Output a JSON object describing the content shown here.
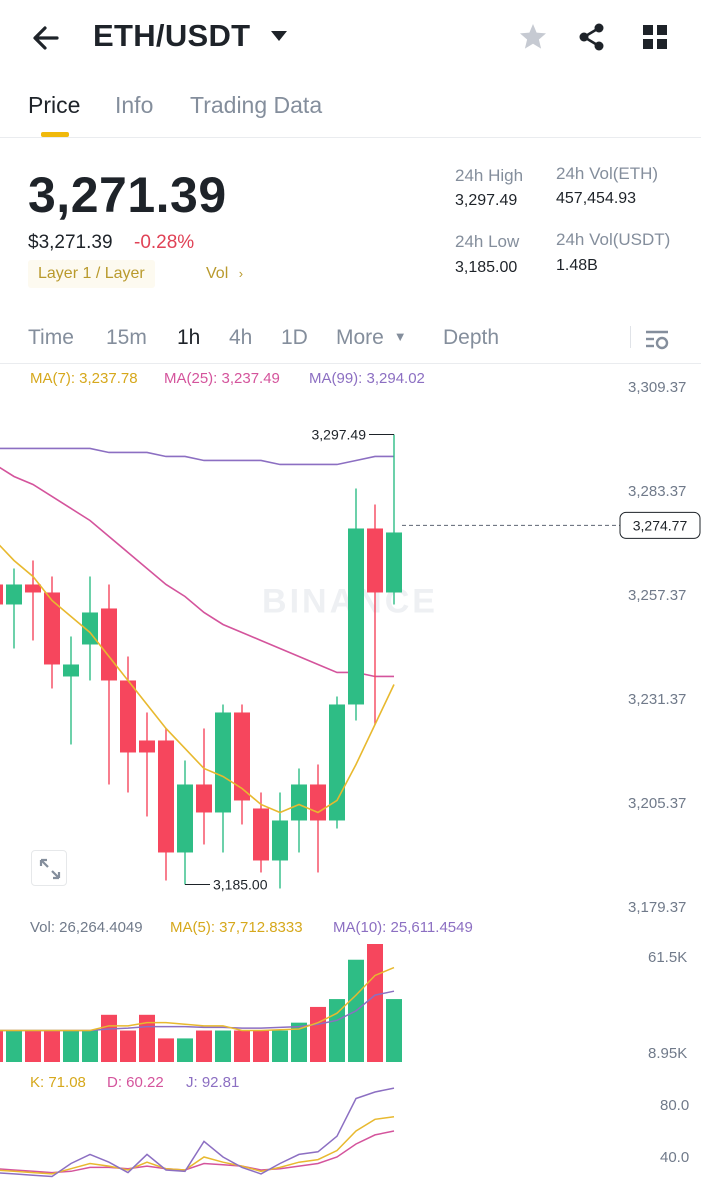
{
  "header": {
    "pair": "ETH/USDT",
    "icons": [
      "back-arrow-icon",
      "caret-down-icon",
      "star-icon",
      "share-icon",
      "grid-icon"
    ]
  },
  "tabs": [
    {
      "label": "Price",
      "active": true
    },
    {
      "label": "Info",
      "active": false
    },
    {
      "label": "Trading Data",
      "active": false
    }
  ],
  "ticker": {
    "last_price": "3,271.39",
    "fiat_price": "$3,271.39",
    "change_pct": "-0.28%",
    "category_tag": "Layer 1 / Layer",
    "vol_tag": "Vol",
    "high_label": "24h High",
    "high_value": "3,297.49",
    "low_label": "24h Low",
    "low_value": "3,185.00",
    "vol_base_label": "24h Vol(ETH)",
    "vol_base_value": "457,454.93",
    "vol_quote_label": "24h Vol(USDT)",
    "vol_quote_value": "1.48B"
  },
  "intervals": [
    {
      "label": "Time",
      "active": false
    },
    {
      "label": "15m",
      "active": false
    },
    {
      "label": "1h",
      "active": true
    },
    {
      "label": "4h",
      "active": false
    },
    {
      "label": "1D",
      "active": false
    },
    {
      "label": "More",
      "active": false
    },
    {
      "label": "Depth",
      "active": false
    }
  ],
  "indicators": {
    "ma7": "MA(7): 3,237.78",
    "ma25": "MA(25): 3,237.49",
    "ma99": "MA(99): 3,294.02",
    "vol": "Vol: 26,264.4049",
    "vol_ma5": "MA(5): 37,712.8333",
    "vol_ma10": "MA(10): 25,611.4549",
    "k": "K: 71.08",
    "d": "D: 60.22",
    "j": "J: 92.81"
  },
  "colors": {
    "up": "#2ebd85",
    "down": "#f6465d",
    "ma7": "#e8b92f",
    "ma25": "#d4549c",
    "ma99": "#8c6fc2",
    "accent": "#f0b90b"
  },
  "chart_data": {
    "type": "candlestick",
    "price_axis_labels": [
      "3,309.37",
      "3,283.37",
      "3,257.37",
      "3,231.37",
      "3,205.37",
      "3,179.37"
    ],
    "price_axis_values": [
      3309.37,
      3283.37,
      3257.37,
      3231.37,
      3205.37,
      3179.37
    ],
    "volume_axis_labels": [
      "61.5K",
      "8.95K"
    ],
    "kdj_axis_labels": [
      "80.0",
      "40.0"
    ],
    "last_price_marker": "3,274.77",
    "last_price_value": 3274.77,
    "high_annotation": "3,297.49",
    "high_value": 3297.49,
    "low_annotation": "3,185.00",
    "low_value": 3185.0,
    "watermark": "BINANCE",
    "candles": [
      {
        "o": 3260,
        "h": 3268,
        "l": 3250,
        "c": 3255
      },
      {
        "o": 3255,
        "h": 3264,
        "l": 3244,
        "c": 3260
      },
      {
        "o": 3260,
        "h": 3266,
        "l": 3246,
        "c": 3258
      },
      {
        "o": 3258,
        "h": 3262,
        "l": 3234,
        "c": 3240
      },
      {
        "o": 3237,
        "h": 3247,
        "l": 3220,
        "c": 3240
      },
      {
        "o": 3245,
        "h": 3262,
        "l": 3236,
        "c": 3253
      },
      {
        "o": 3254,
        "h": 3260,
        "l": 3210,
        "c": 3236
      },
      {
        "o": 3236,
        "h": 3242,
        "l": 3208,
        "c": 3218
      },
      {
        "o": 3221,
        "h": 3228,
        "l": 3202,
        "c": 3218
      },
      {
        "o": 3221,
        "h": 3224,
        "l": 3186,
        "c": 3193
      },
      {
        "o": 3193,
        "h": 3216,
        "l": 3185,
        "c": 3210
      },
      {
        "o": 3210,
        "h": 3224,
        "l": 3195,
        "c": 3203
      },
      {
        "o": 3203,
        "h": 3230,
        "l": 3193,
        "c": 3228
      },
      {
        "o": 3228,
        "h": 3230,
        "l": 3200,
        "c": 3206
      },
      {
        "o": 3204,
        "h": 3208,
        "l": 3188,
        "c": 3191
      },
      {
        "o": 3191,
        "h": 3208,
        "l": 3184,
        "c": 3201
      },
      {
        "o": 3201,
        "h": 3214,
        "l": 3193,
        "c": 3210
      },
      {
        "o": 3210,
        "h": 3215,
        "l": 3188,
        "c": 3201
      },
      {
        "o": 3201,
        "h": 3232,
        "l": 3199,
        "c": 3230
      },
      {
        "o": 3230,
        "h": 3284,
        "l": 3226,
        "c": 3274
      },
      {
        "o": 3274,
        "h": 3280,
        "l": 3225,
        "c": 3258
      },
      {
        "o": 3258,
        "h": 3297.49,
        "l": 3255,
        "c": 3273
      }
    ],
    "ma7": [
      3271,
      3266,
      3262,
      3256,
      3252,
      3248,
      3242,
      3236,
      3230,
      3224,
      3219,
      3214,
      3212,
      3209,
      3205,
      3203,
      3205,
      3203,
      3206,
      3215,
      3225,
      3235
    ],
    "ma25": [
      3290,
      3287,
      3285,
      3282,
      3279,
      3276,
      3272,
      3268,
      3264,
      3260,
      3257,
      3253,
      3250,
      3248,
      3246,
      3244,
      3242,
      3240,
      3238,
      3238,
      3237,
      3237
    ],
    "ma99": [
      3294,
      3294,
      3294,
      3294,
      3294,
      3294,
      3293,
      3293,
      3293,
      3292,
      3292,
      3291,
      3291,
      3291,
      3291,
      3290,
      3290,
      3290,
      3290,
      3291,
      3292,
      3292
    ],
    "volume": [
      4,
      4,
      4,
      4,
      4,
      4,
      6,
      4,
      6,
      3,
      3,
      4,
      4,
      4,
      4,
      4,
      5,
      7,
      8,
      13,
      15,
      8
    ],
    "vol_ma5": [
      4,
      4,
      4,
      4,
      4,
      4,
      4.6,
      4.6,
      5,
      5,
      4.8,
      4.6,
      4.6,
      4,
      4,
      4.1,
      4.2,
      5,
      6.2,
      8.5,
      11,
      12
    ],
    "vol_ma10": [
      4,
      4,
      4,
      4,
      4,
      4,
      4.2,
      4.3,
      4.5,
      4.5,
      4.5,
      4.4,
      4.4,
      4.3,
      4.3,
      4.4,
      4.5,
      4.8,
      5.3,
      6.5,
      8.5,
      9
    ],
    "kdj_k": [
      30,
      29,
      28,
      27,
      31,
      35,
      33,
      30,
      36,
      31,
      30,
      40,
      36,
      33,
      29,
      32,
      36,
      38,
      45,
      60,
      69,
      71
    ],
    "kdj_d": [
      31,
      30,
      29,
      28,
      29,
      32,
      32,
      31,
      33,
      31,
      30,
      35,
      34,
      33,
      30,
      31,
      33,
      35,
      40,
      50,
      57,
      60
    ],
    "kdj_j": [
      28,
      27,
      26,
      25,
      35,
      42,
      36,
      28,
      42,
      30,
      29,
      52,
      40,
      32,
      27,
      35,
      42,
      44,
      56,
      85,
      90,
      93
    ]
  }
}
